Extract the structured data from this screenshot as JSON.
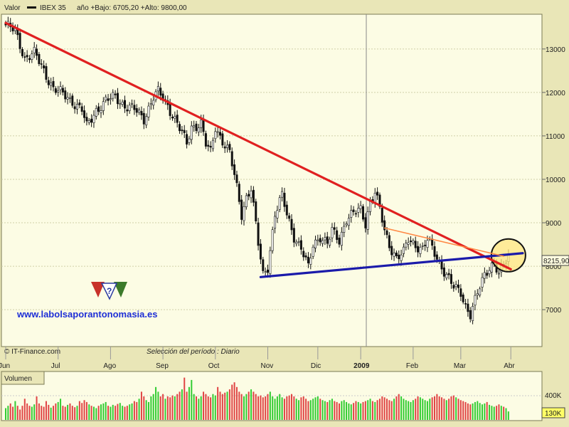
{
  "header": {
    "valor_label": "Valor",
    "instrument": "IBEX 35",
    "range_text": "año +Bajo: 6705,20 +Alto: 9800,00"
  },
  "footer": {
    "source": "© IT-Finance.com",
    "selection": "Selección del período : Diario"
  },
  "watermark": {
    "url": "www.labolsaporantonomasia.es"
  },
  "volume_panel": {
    "label": "Volumen",
    "tick_400k": "400K",
    "current": "130K",
    "colors": {
      "up": "#33cc33",
      "down": "#e04444"
    }
  },
  "chart_data": {
    "type": "candlestick",
    "instrument": "IBEX 35",
    "y_ticks": [
      7000,
      8000,
      9000,
      10000,
      11000,
      12000,
      13000
    ],
    "y_tick_labels": [
      "7000",
      "8000",
      "9000",
      "10000",
      "11000",
      "12000",
      "13000"
    ],
    "ylim": [
      6150,
      13800
    ],
    "x_labels": [
      "Jun",
      "Jul",
      "Ago",
      "Sep",
      "Oct",
      "Nov",
      "Dic",
      "2009",
      "Feb",
      "Mar",
      "Abr"
    ],
    "last_value": 8215.9,
    "last_value_label": "8215,90",
    "year_low": 6705.2,
    "year_high": 9800.0,
    "grid": true,
    "price_anchors": [
      [
        0,
        13550
      ],
      [
        4,
        13400
      ],
      [
        8,
        12800
      ],
      [
        12,
        12900
      ],
      [
        16,
        12500
      ],
      [
        20,
        12100
      ],
      [
        24,
        11950
      ],
      [
        28,
        11800
      ],
      [
        32,
        11600
      ],
      [
        34,
        11200
      ],
      [
        38,
        11600
      ],
      [
        42,
        11800
      ],
      [
        46,
        11900
      ],
      [
        50,
        11700
      ],
      [
        54,
        11600
      ],
      [
        58,
        11400
      ],
      [
        62,
        11900
      ],
      [
        64,
        12000
      ],
      [
        68,
        11700
      ],
      [
        72,
        11300
      ],
      [
        76,
        10800
      ],
      [
        78,
        11200
      ],
      [
        82,
        11300
      ],
      [
        84,
        10800
      ],
      [
        86,
        10600
      ],
      [
        88,
        11200
      ],
      [
        90,
        11000
      ],
      [
        94,
        10600
      ],
      [
        97,
        9800
      ],
      [
        99,
        9200
      ],
      [
        101,
        9600
      ],
      [
        103,
        9800
      ],
      [
        106,
        8500
      ],
      [
        108,
        7800
      ],
      [
        110,
        8000
      ],
      [
        113,
        9200
      ],
      [
        116,
        9600
      ],
      [
        118,
        9200
      ],
      [
        121,
        8700
      ],
      [
        124,
        8400
      ],
      [
        127,
        7950
      ],
      [
        129,
        8500
      ],
      [
        132,
        8700
      ],
      [
        135,
        8500
      ],
      [
        137,
        8800
      ],
      [
        140,
        8600
      ],
      [
        143,
        9100
      ],
      [
        146,
        9200
      ],
      [
        149,
        9300
      ],
      [
        151,
        9000
      ],
      [
        153,
        9500
      ],
      [
        155,
        9700
      ],
      [
        157,
        9300
      ],
      [
        159,
        8800
      ],
      [
        161,
        8500
      ],
      [
        164,
        8200
      ],
      [
        167,
        8300
      ],
      [
        169,
        8600
      ],
      [
        172,
        8500
      ],
      [
        175,
        8400
      ],
      [
        177,
        8600
      ],
      [
        180,
        8300
      ],
      [
        183,
        8000
      ],
      [
        186,
        7700
      ],
      [
        188,
        7500
      ],
      [
        191,
        7400
      ],
      [
        193,
        7100
      ],
      [
        195,
        6900
      ],
      [
        197,
        7200
      ],
      [
        199,
        7500
      ],
      [
        201,
        7800
      ],
      [
        203,
        8000
      ],
      [
        205,
        8100
      ],
      [
        207,
        7800
      ],
      [
        209,
        8000
      ],
      [
        211,
        8215
      ]
    ],
    "trendlines": [
      {
        "name": "resistance",
        "color": "#e02020",
        "points": [
          [
            0,
            13600
          ],
          [
            212,
            7930
          ]
        ]
      },
      {
        "name": "support",
        "color": "#1a1aaa",
        "points": [
          [
            107,
            7750
          ],
          [
            217,
            8300
          ]
        ]
      },
      {
        "name": "short-resistance",
        "color": "#ff8844",
        "points": [
          [
            159,
            8880
          ],
          [
            209,
            8230
          ]
        ]
      }
    ],
    "highlight": {
      "name": "breakout-ellipse",
      "color": "#ffe680",
      "center": [
        211,
        8250
      ]
    },
    "volume": [
      0.25,
      0.3,
      0.35,
      0.28,
      0.4,
      0.3,
      0.22,
      0.3,
      0.45,
      0.35,
      0.3,
      0.28,
      0.33,
      0.5,
      0.35,
      0.3,
      0.28,
      0.4,
      0.32,
      0.26,
      0.3,
      0.35,
      0.38,
      0.45,
      0.3,
      0.28,
      0.32,
      0.35,
      0.3,
      0.27,
      0.3,
      0.4,
      0.36,
      0.42,
      0.38,
      0.33,
      0.3,
      0.28,
      0.25,
      0.3,
      0.33,
      0.35,
      0.38,
      0.3,
      0.28,
      0.32,
      0.3,
      0.34,
      0.36,
      0.3,
      0.28,
      0.3,
      0.33,
      0.35,
      0.4,
      0.38,
      0.45,
      0.6,
      0.5,
      0.42,
      0.38,
      0.5,
      0.55,
      0.7,
      0.6,
      0.5,
      0.55,
      0.45,
      0.5,
      0.48,
      0.52,
      0.5,
      0.55,
      0.6,
      0.65,
      0.9,
      0.6,
      0.7,
      0.85,
      0.55,
      0.5,
      0.45,
      0.5,
      0.6,
      0.55,
      0.5,
      0.48,
      0.55,
      0.52,
      0.7,
      0.6,
      0.55,
      0.58,
      0.6,
      0.65,
      0.75,
      0.8,
      0.7,
      0.6,
      0.55,
      0.5,
      0.55,
      0.6,
      0.65,
      0.6,
      0.55,
      0.5,
      0.52,
      0.48,
      0.5,
      0.55,
      0.6,
      0.5,
      0.45,
      0.5,
      0.55,
      0.48,
      0.45,
      0.5,
      0.52,
      0.55,
      0.5,
      0.45,
      0.42,
      0.48,
      0.5,
      0.45,
      0.4,
      0.42,
      0.45,
      0.48,
      0.5,
      0.45,
      0.42,
      0.4,
      0.38,
      0.42,
      0.45,
      0.4,
      0.38,
      0.35,
      0.4,
      0.42,
      0.38,
      0.35,
      0.33,
      0.36,
      0.4,
      0.38,
      0.35,
      0.38,
      0.4,
      0.42,
      0.45,
      0.4,
      0.38,
      0.42,
      0.45,
      0.5,
      0.48,
      0.45,
      0.42,
      0.4,
      0.45,
      0.5,
      0.55,
      0.5,
      0.45,
      0.42,
      0.4,
      0.38,
      0.42,
      0.45,
      0.5,
      0.48,
      0.45,
      0.42,
      0.4,
      0.45,
      0.48,
      0.5,
      0.55,
      0.5,
      0.48,
      0.45,
      0.42,
      0.45,
      0.5,
      0.52,
      0.48,
      0.45,
      0.42,
      0.4,
      0.38,
      0.35,
      0.33,
      0.35,
      0.38,
      0.4,
      0.36,
      0.33,
      0.35,
      0.38,
      0.32,
      0.3,
      0.28,
      0.3,
      0.33,
      0.3,
      0.28,
      0.25,
      0.18
    ]
  }
}
